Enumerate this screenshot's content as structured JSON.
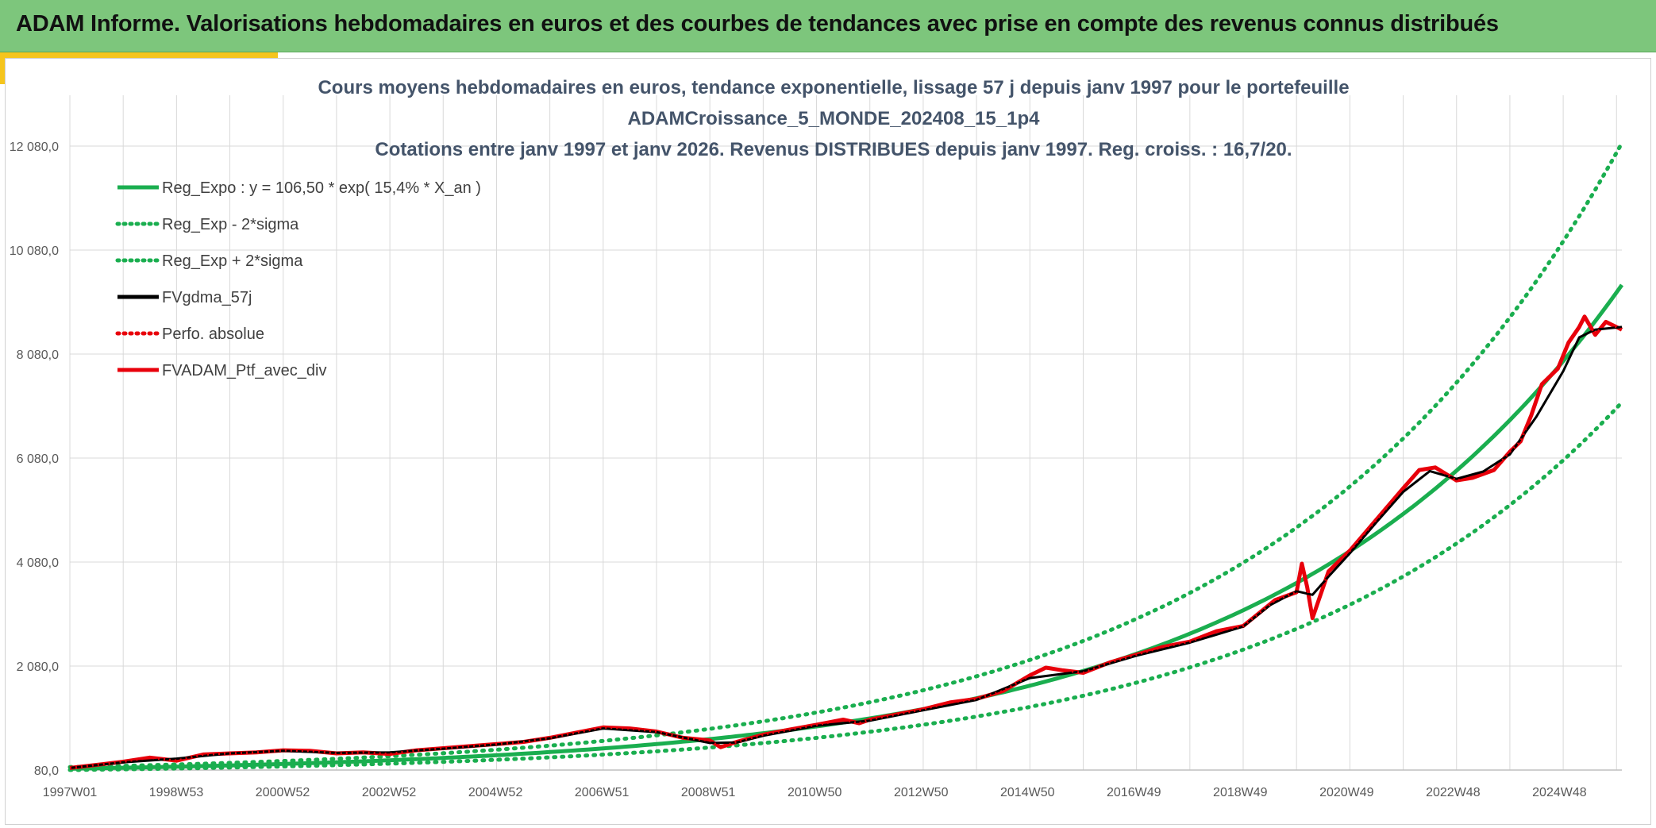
{
  "header": {
    "title": "ADAM Informe. Valorisations hebdomadaires en euros et des courbes de tendances avec prise en compte des revenus connus distribués"
  },
  "colors": {
    "header_bg": "#7dc67c",
    "accent": "#f5c51d",
    "green": "#1aae4f",
    "black": "#000000",
    "red": "#e8000b"
  },
  "chart_data": {
    "type": "line",
    "title_lines": [
      "Cours moyens hebdomadaires en euros, tendance exponentielle, lissage 57 j depuis janv 1997 pour le portefeuille",
      "ADAMCroissance_5_MONDE_202408_15_1p4",
      "Cotations entre janv 1997 et janv 2026. Revenus DISTRIBUES depuis janv 1997. Reg. croiss. : 16,7/20."
    ],
    "x_tick_labels": [
      "1997W01",
      "1998W53",
      "2000W52",
      "2002W52",
      "2004W52",
      "2006W51",
      "2008W51",
      "2010W50",
      "2012W50",
      "2014W50",
      "2016W49",
      "2018W49",
      "2020W49",
      "2022W48",
      "2024W48"
    ],
    "x_range_years": [
      1997.0,
      2026.1
    ],
    "y_ticks": [
      80,
      2080,
      4080,
      6080,
      8080,
      10080,
      12080
    ],
    "y_tick_labels": [
      "80,0",
      "2 080,0",
      "4 080,0",
      "6 080,0",
      "8 080,0",
      "10 080,0",
      "12 080,0"
    ],
    "ylim": [
      80,
      12800
    ],
    "grid": true,
    "legend_position": "top-left",
    "legend": [
      {
        "name": "Reg_Expo : y = 106,50 * exp( 15,4% *  X_an )",
        "color": "#1aae4f",
        "style": "solid"
      },
      {
        "name": "Reg_Exp - 2*sigma",
        "color": "#1aae4f",
        "style": "dotted"
      },
      {
        "name": "Reg_Exp + 2*sigma",
        "color": "#1aae4f",
        "style": "dotted"
      },
      {
        "name": "FVgdma_57j",
        "color": "#000000",
        "style": "solid"
      },
      {
        "name": "Perfo. absolue",
        "color": "#e8000b",
        "style": "dotted"
      },
      {
        "name": "FVADAM_Ptf_avec_div",
        "color": "#e8000b",
        "style": "solid"
      }
    ],
    "regression": {
      "a": 106.5,
      "rate": 0.154,
      "sigma_factor_low": 0.76,
      "sigma_factor_high": 1.29
    },
    "series": [
      {
        "name": "FVADAM_Ptf_avec_div",
        "x": [
          1997.0,
          1997.5,
          1998.0,
          1998.5,
          1999.0,
          1999.5,
          2000.0,
          2000.5,
          2001.0,
          2001.5,
          2002.0,
          2002.5,
          2003.0,
          2003.5,
          2004.0,
          2004.5,
          2005.0,
          2005.5,
          2006.0,
          2006.5,
          2007.0,
          2007.5,
          2008.0,
          2008.5,
          2009.0,
          2009.2,
          2009.5,
          2010.0,
          2010.5,
          2011.0,
          2011.5,
          2011.8,
          2012.0,
          2012.5,
          2013.0,
          2013.5,
          2014.0,
          2014.5,
          2015.0,
          2015.3,
          2015.6,
          2016.0,
          2016.5,
          2017.0,
          2017.5,
          2018.0,
          2018.5,
          2019.0,
          2019.3,
          2019.6,
          2020.0,
          2020.1,
          2020.2,
          2020.3,
          2020.6,
          2021.0,
          2021.5,
          2022.0,
          2022.3,
          2022.6,
          2023.0,
          2023.3,
          2023.7,
          2024.0,
          2024.2,
          2024.4,
          2024.6,
          2024.9,
          2025.1,
          2025.3,
          2025.4,
          2025.6,
          2025.8,
          2026.1
        ],
        "values": [
          120,
          180,
          240,
          320,
          260,
          380,
          400,
          420,
          460,
          450,
          400,
          420,
          390,
          460,
          500,
          540,
          580,
          620,
          700,
          800,
          900,
          880,
          820,
          700,
          650,
          520,
          620,
          760,
          860,
          950,
          1050,
          980,
          1050,
          1150,
          1250,
          1380,
          1450,
          1600,
          1900,
          2050,
          2000,
          1950,
          2150,
          2300,
          2450,
          2550,
          2750,
          2850,
          3100,
          3350,
          3500,
          4050,
          3600,
          3000,
          3900,
          4300,
          4900,
          5500,
          5850,
          5900,
          5650,
          5700,
          5850,
          6200,
          6400,
          6900,
          7500,
          7800,
          8300,
          8600,
          8800,
          8450,
          8700,
          8550
        ]
      },
      {
        "name": "FVgdma_57j",
        "x": [
          1997.0,
          1998.0,
          1999.0,
          2000.0,
          2001.0,
          2002.0,
          2003.0,
          2004.0,
          2005.0,
          2006.0,
          2007.0,
          2008.0,
          2009.0,
          2009.5,
          2010.0,
          2011.0,
          2012.0,
          2013.0,
          2014.0,
          2015.0,
          2016.0,
          2017.0,
          2018.0,
          2019.0,
          2019.5,
          2020.0,
          2020.3,
          2020.6,
          2021.0,
          2021.5,
          2022.0,
          2022.5,
          2023.0,
          2023.5,
          2024.0,
          2024.5,
          2025.0,
          2025.3,
          2025.6,
          2026.1
        ],
        "values": [
          120,
          230,
          300,
          400,
          450,
          410,
          420,
          490,
          570,
          690,
          880,
          810,
          600,
          610,
          740,
          930,
          1030,
          1230,
          1430,
          1850,
          1980,
          2280,
          2530,
          2840,
          3250,
          3520,
          3450,
          3800,
          4250,
          4850,
          5430,
          5830,
          5680,
          5820,
          6150,
          6880,
          7750,
          8400,
          8550,
          8600
        ]
      }
    ]
  }
}
